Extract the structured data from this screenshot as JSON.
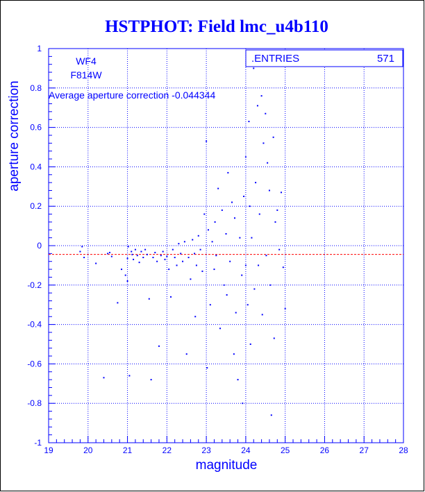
{
  "colors": {
    "frame": "#0000ff",
    "points": "#0000ff",
    "grid": "#0000ff",
    "average_line": "#ff0000",
    "background": "#ffffff"
  },
  "chart_data": {
    "type": "scatter",
    "title": "HSTPHOT: Field lmc_u4b110",
    "xlabel": "magnitude",
    "ylabel": "aperture correction",
    "xlim": [
      19,
      28
    ],
    "ylim": [
      -1,
      1
    ],
    "grid": true,
    "x_ticks": [
      "19",
      "20",
      "21",
      "22",
      "23",
      "24",
      "25",
      "26",
      "27",
      "28"
    ],
    "y_ticks": [
      "-1",
      "-0.8",
      "-0.6",
      "-0.4",
      "-0.2",
      "0",
      "0.2",
      "0.4",
      "0.6",
      "0.8",
      "1"
    ],
    "annotations": [
      "WF4",
      "F814W",
      "Average aperture correction -0.044344"
    ],
    "average_value": -0.044344,
    "stats_box": {
      "label": ".ENTRIES",
      "value": "571"
    },
    "points": [
      [
        19.8,
        -0.03
      ],
      [
        19.85,
        -0.005
      ],
      [
        19.9,
        -0.06
      ],
      [
        20.2,
        -0.09
      ],
      [
        20.4,
        -0.67
      ],
      [
        20.5,
        -0.04
      ],
      [
        20.55,
        -0.035
      ],
      [
        20.6,
        -0.055
      ],
      [
        20.75,
        -0.29
      ],
      [
        20.85,
        -0.12
      ],
      [
        20.95,
        -0.15
      ],
      [
        21.0,
        -0.18
      ],
      [
        21.0,
        -0.065
      ],
      [
        21.02,
        -0.005
      ],
      [
        21.05,
        -0.66
      ],
      [
        21.1,
        -0.03
      ],
      [
        21.12,
        -0.045
      ],
      [
        21.15,
        -0.07
      ],
      [
        21.2,
        -0.02
      ],
      [
        21.25,
        -0.05
      ],
      [
        21.3,
        -0.085
      ],
      [
        21.35,
        -0.03
      ],
      [
        21.4,
        -0.06
      ],
      [
        21.45,
        -0.02
      ],
      [
        21.5,
        -0.045
      ],
      [
        21.55,
        -0.27
      ],
      [
        21.6,
        -0.68
      ],
      [
        21.65,
        -0.06
      ],
      [
        21.7,
        -0.035
      ],
      [
        21.75,
        -0.08
      ],
      [
        21.8,
        -0.51
      ],
      [
        21.85,
        -0.05
      ],
      [
        21.9,
        -0.03
      ],
      [
        21.95,
        -0.07
      ],
      [
        22.0,
        -0.055
      ],
      [
        22.05,
        -0.12
      ],
      [
        22.1,
        -0.26
      ],
      [
        22.15,
        -0.02
      ],
      [
        22.2,
        -0.06
      ],
      [
        22.25,
        -0.1
      ],
      [
        22.3,
        0.01
      ],
      [
        22.35,
        -0.04
      ],
      [
        22.4,
        -0.08
      ],
      [
        22.45,
        0.02
      ],
      [
        22.5,
        -0.55
      ],
      [
        22.55,
        -0.06
      ],
      [
        22.6,
        -0.17
      ],
      [
        22.65,
        0.03
      ],
      [
        22.7,
        -0.04
      ],
      [
        22.72,
        -0.36
      ],
      [
        22.75,
        -0.1
      ],
      [
        22.8,
        0.05
      ],
      [
        22.85,
        -0.02
      ],
      [
        22.9,
        -0.13
      ],
      [
        22.95,
        0.16
      ],
      [
        23.0,
        0.53
      ],
      [
        23.02,
        -0.62
      ],
      [
        23.05,
        0.08
      ],
      [
        23.1,
        -0.3
      ],
      [
        23.15,
        0.02
      ],
      [
        23.2,
        -0.12
      ],
      [
        23.22,
        0.12
      ],
      [
        23.25,
        -0.05
      ],
      [
        23.3,
        0.29
      ],
      [
        23.35,
        -0.42
      ],
      [
        23.4,
        0.18
      ],
      [
        23.45,
        -0.2
      ],
      [
        23.5,
        0.06
      ],
      [
        23.52,
        -0.25
      ],
      [
        23.55,
        0.37
      ],
      [
        23.6,
        -0.08
      ],
      [
        23.65,
        0.22
      ],
      [
        23.7,
        -0.55
      ],
      [
        23.72,
        0.14
      ],
      [
        23.75,
        -0.34
      ],
      [
        23.8,
        -0.68
      ],
      [
        23.85,
        0.04
      ],
      [
        23.9,
        -0.15
      ],
      [
        23.92,
        -0.8
      ],
      [
        23.95,
        0.25
      ],
      [
        24.0,
        0.45
      ],
      [
        24.0,
        -0.1
      ],
      [
        24.05,
        -0.3
      ],
      [
        24.08,
        0.63
      ],
      [
        24.1,
        0.2
      ],
      [
        24.12,
        -0.5
      ],
      [
        24.15,
        0.04
      ],
      [
        24.2,
        0.9
      ],
      [
        24.22,
        -0.22
      ],
      [
        24.25,
        0.32
      ],
      [
        24.3,
        0.71
      ],
      [
        24.32,
        -0.1
      ],
      [
        24.35,
        0.16
      ],
      [
        24.4,
        0.76
      ],
      [
        24.42,
        -0.35
      ],
      [
        24.45,
        0.52
      ],
      [
        24.5,
        0.67
      ],
      [
        24.52,
        -0.05
      ],
      [
        24.55,
        0.42
      ],
      [
        24.6,
        0.28
      ],
      [
        24.62,
        -0.2
      ],
      [
        24.65,
        -0.86
      ],
      [
        24.7,
        0.55
      ],
      [
        24.72,
        -0.47
      ],
      [
        24.75,
        0.12
      ],
      [
        24.8,
        0.18
      ],
      [
        24.85,
        -0.02
      ],
      [
        24.9,
        0.27
      ],
      [
        24.95,
        -0.11
      ],
      [
        25.0,
        -0.32
      ]
    ]
  }
}
